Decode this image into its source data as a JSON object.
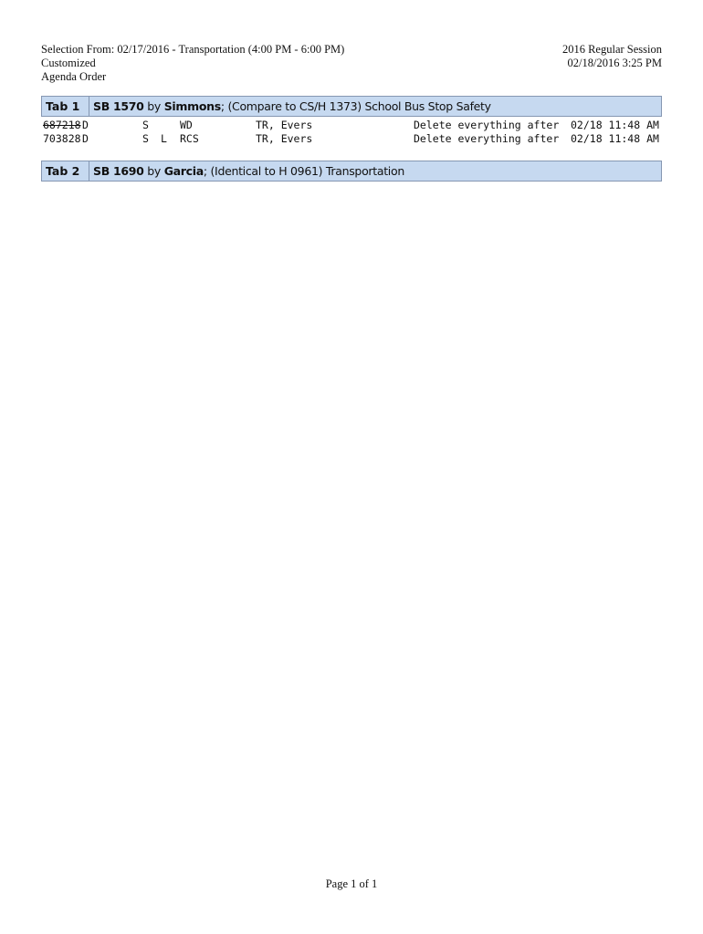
{
  "header": {
    "left": [
      "Selection From: 02/17/2016 - Transportation (4:00 PM - 6:00 PM)",
      "Customized",
      "Agenda Order"
    ],
    "right": [
      "2016 Regular Session",
      "02/18/2016 3:25 PM"
    ]
  },
  "tabs": [
    {
      "tab": "Tab 1",
      "bill": "SB 1570",
      "by": "by",
      "sponsor": "Simmons",
      "desc": "; (Compare to CS/H 1373) School Bus Stop Safety",
      "rows": [
        {
          "id": "687218",
          "c1": "D",
          "c2": "S",
          "c3": "",
          "c4": "WD",
          "c5": "TR, Evers",
          "c6": "Delete everything after",
          "c7": "02/18 11:48 AM",
          "struck": true
        },
        {
          "id": "703828",
          "c1": "D",
          "c2": "S",
          "c3": "L",
          "c4": "RCS",
          "c5": "TR, Evers",
          "c6": "Delete everything after",
          "c7": "02/18 11:48 AM",
          "struck": false
        }
      ]
    },
    {
      "tab": "Tab 2",
      "bill": "SB 1690",
      "by": "by",
      "sponsor": "Garcia",
      "desc": "; (Identical to H 0961) Transportation",
      "rows": []
    }
  ],
  "footer": "Page 1 of 1"
}
